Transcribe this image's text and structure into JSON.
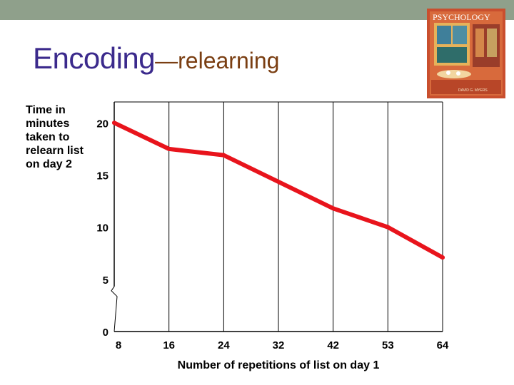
{
  "slide": {
    "title_main": "Encoding",
    "title_sub": "—relearning"
  },
  "colors": {
    "top_band": "#8fa08b",
    "title_main": "#3b2a8c",
    "title_sub": "#7a3e12",
    "line": "#e8141c",
    "grid": "#000000"
  },
  "cover": {
    "book_title": "PSYCHOLOGY",
    "author": "DAVID G. MYERS"
  },
  "chart_data": {
    "type": "line",
    "ylabel": "Time in minutes taken to relearn list on day 2",
    "xlabel": "Number of repetitions of list on day 1",
    "x_tick_labels": [
      "8",
      "16",
      "24",
      "32",
      "42",
      "53",
      "64"
    ],
    "y_tick_labels": [
      "0",
      "5",
      "10",
      "15",
      "20"
    ],
    "y_ticks": [
      0,
      5,
      10,
      15,
      20
    ],
    "ylim": [
      0,
      22
    ],
    "y_axis_break": true,
    "grid": true,
    "series": [
      {
        "values": [
          20,
          17.5,
          16.9,
          null,
          11.8,
          10,
          7.1
        ]
      }
    ]
  }
}
